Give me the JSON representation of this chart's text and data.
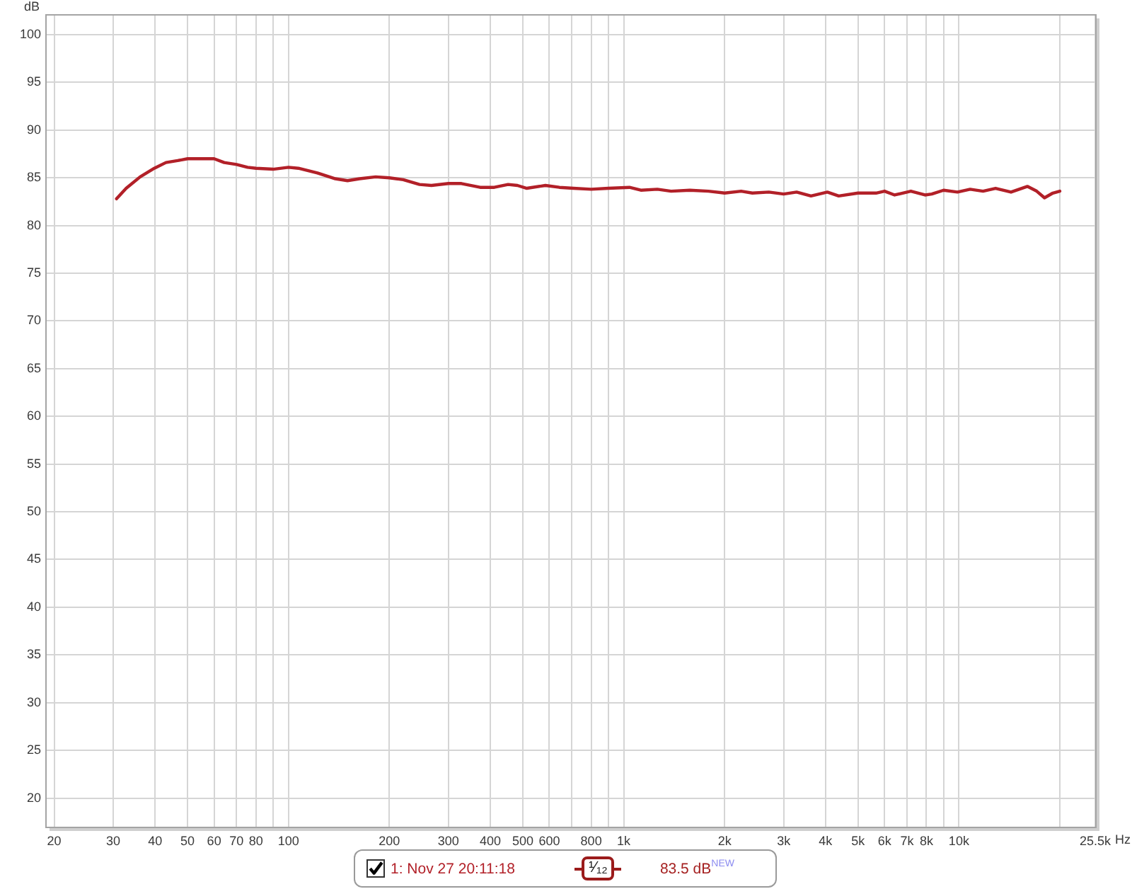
{
  "chart_data": {
    "type": "line",
    "ylabel": "dB",
    "xlabel": "Hz",
    "annotations": [
      "¹⁄₁₂",
      "83.5 dB$^{NEW}$"
    ],
    "x": [
      30.7,
      32.8,
      36.1,
      39.8,
      43.1,
      46.7,
      50,
      54.8,
      60,
      64.3,
      70,
      75.5,
      80,
      90,
      100,
      107,
      122,
      138,
      150,
      163,
      182,
      200,
      220,
      246,
      267,
      300,
      328,
      373,
      411,
      452,
      482,
      514,
      584,
      643,
      708,
      800,
      900,
      1040,
      1125,
      1260,
      1385,
      1575,
      1790,
      2000,
      2240,
      2420,
      2710,
      3000,
      3280,
      3620,
      4050,
      4380,
      5000,
      5660,
      6000,
      6430,
      7190,
      7920,
      8300,
      9000,
      9900,
      10800,
      11800,
      12860,
      14300,
      16000,
      17060,
      18000,
      19060,
      20000
    ],
    "series": [
      {
        "name": "1: Nov 27 20:11:18",
        "color": "#b22028",
        "values": [
          82.8,
          83.9,
          85.1,
          86.0,
          86.6,
          86.8,
          87.0,
          87.0,
          87.0,
          86.6,
          86.4,
          86.1,
          86.0,
          85.9,
          86.1,
          86.0,
          85.5,
          84.9,
          84.7,
          84.9,
          85.1,
          85.0,
          84.8,
          84.3,
          84.2,
          84.4,
          84.4,
          84.0,
          84.0,
          84.3,
          84.2,
          83.9,
          84.2,
          84.0,
          83.9,
          83.8,
          83.9,
          84.0,
          83.7,
          83.8,
          83.6,
          83.7,
          83.6,
          83.4,
          83.6,
          83.4,
          83.5,
          83.3,
          83.5,
          83.1,
          83.5,
          83.1,
          83.4,
          83.4,
          83.6,
          83.2,
          83.6,
          83.2,
          83.3,
          83.7,
          83.5,
          83.8,
          83.6,
          83.9,
          83.5,
          84.1,
          83.6,
          82.9,
          83.4,
          83.6
        ]
      }
    ],
    "xlim": [
      19,
      25500
    ],
    "ylim": [
      17,
      102
    ],
    "xticks": [
      20,
      30,
      40,
      50,
      60,
      70,
      80,
      {
        "value": 90,
        "label": null
      },
      100,
      200,
      300,
      400,
      500,
      600,
      {
        "value": 700,
        "label": null
      },
      800,
      {
        "value": 900,
        "label": null
      },
      {
        "value": 1000,
        "label": "1k"
      },
      {
        "value": 2000,
        "label": "2k"
      },
      {
        "value": 3000,
        "label": "3k"
      },
      {
        "value": 4000,
        "label": "4k"
      },
      {
        "value": 5000,
        "label": "5k"
      },
      {
        "value": 6000,
        "label": "6k"
      },
      {
        "value": 7000,
        "label": "7k"
      },
      {
        "value": 8000,
        "label": "8k"
      },
      {
        "value": 9000,
        "label": null
      },
      {
        "value": 10000,
        "label": "10k"
      },
      {
        "value": 20000,
        "label": null
      },
      {
        "value": 25500,
        "label": "25.5k"
      }
    ],
    "yticks": [
      20,
      25,
      30,
      35,
      40,
      45,
      50,
      55,
      60,
      65,
      70,
      75,
      80,
      85,
      90,
      95,
      100
    ],
    "log": "x",
    "grid": true,
    "legend": "bottom",
    "marker": "none",
    "line_style": "solid"
  }
}
